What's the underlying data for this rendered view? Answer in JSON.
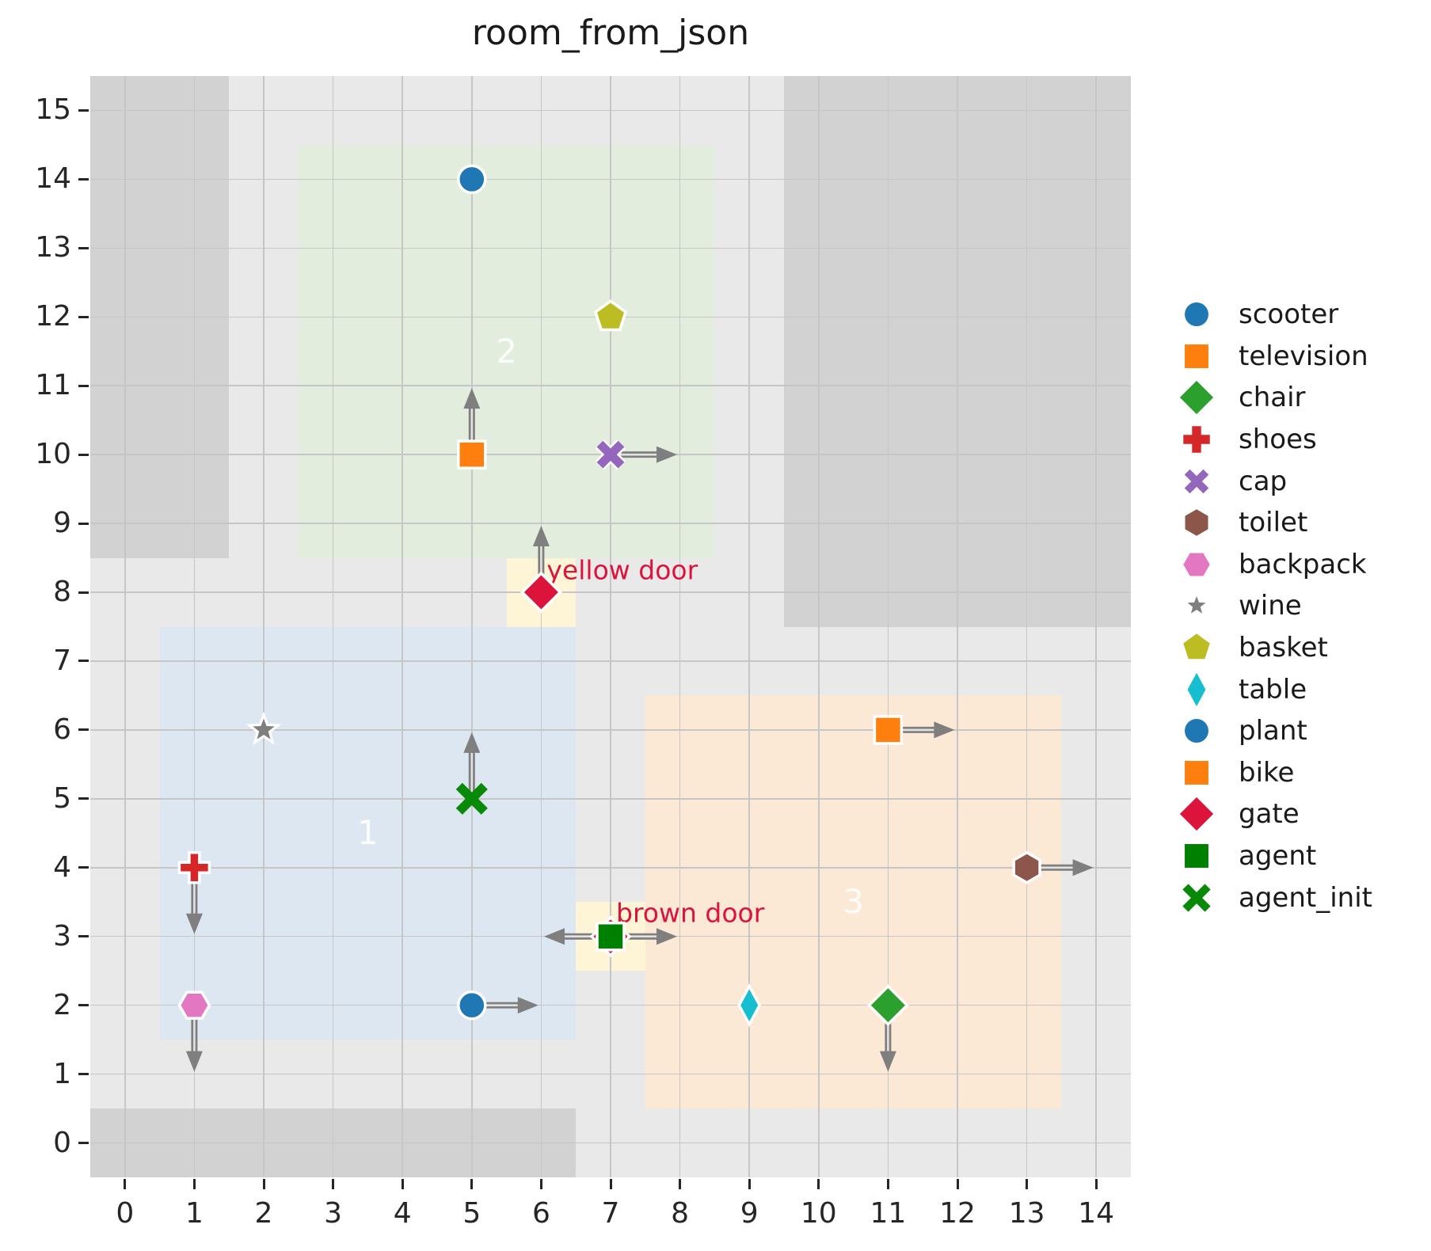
{
  "title": "room_from_json",
  "colors": {
    "axes_bg": "#e9e9e9",
    "grid": "#c6c6c6",
    "wall": "#d2d2d2",
    "door_fill": "#fdf5d6",
    "arrow": "#7f7f7f",
    "crimson": "#dc143c",
    "tick_text": "#262626",
    "room_label_text": "#ffffff"
  },
  "chart_data": {
    "type": "scatter",
    "title": "room_from_json",
    "xlabel": "",
    "ylabel": "",
    "xlim": [
      -0.5,
      14.5
    ],
    "ylim": [
      -0.5,
      15.5
    ],
    "x_ticks": [
      0,
      1,
      2,
      3,
      4,
      5,
      6,
      7,
      8,
      9,
      10,
      11,
      12,
      13,
      14
    ],
    "y_ticks": [
      0,
      1,
      2,
      3,
      4,
      5,
      6,
      7,
      8,
      9,
      10,
      11,
      12,
      13,
      14,
      15
    ],
    "grid": true,
    "legend_position": "right",
    "walls": [
      {
        "name": "wall-top-left",
        "x0": -0.5,
        "y0": 8.5,
        "x1": 1.5,
        "y1": 15.5
      },
      {
        "name": "wall-top-right",
        "x0": 9.5,
        "y0": 7.5,
        "x1": 14.5,
        "y1": 15.5
      },
      {
        "name": "wall-bottom",
        "x0": -0.5,
        "y0": -0.5,
        "x1": 6.5,
        "y1": 0.5
      }
    ],
    "rooms": [
      {
        "id": "1",
        "x0": 0.5,
        "y0": 1.5,
        "x1": 6.5,
        "y1": 7.5,
        "fill": "#dce7f1",
        "label": "1",
        "label_x": 3.5,
        "label_y": 4.5
      },
      {
        "id": "2",
        "x0": 2.5,
        "y0": 8.5,
        "x1": 8.5,
        "y1": 14.5,
        "fill": "#e2edde",
        "label": "2",
        "label_x": 5.5,
        "label_y": 11.5
      },
      {
        "id": "3",
        "x0": 7.5,
        "y0": 0.5,
        "x1": 13.5,
        "y1": 6.5,
        "fill": "#fbe8d5",
        "label": "3",
        "label_x": 10.5,
        "label_y": 3.5
      }
    ],
    "door_regions": [
      {
        "name": "yellow-door-region",
        "x0": 5.5,
        "y0": 7.5,
        "x1": 6.5,
        "y1": 8.5
      },
      {
        "name": "brown-door-region",
        "x0": 6.5,
        "y0": 2.5,
        "x1": 7.5,
        "y1": 3.5
      }
    ],
    "door_labels": [
      {
        "text": "yellow door",
        "x": 6.08,
        "y": 8.32
      },
      {
        "text": "brown door",
        "x": 7.08,
        "y": 3.34
      }
    ],
    "objects": [
      {
        "name": "scooter",
        "marker": "circle",
        "color": "#1f77b4",
        "x": 5,
        "y": 14,
        "arrows": [],
        "edge": true
      },
      {
        "name": "television",
        "marker": "square",
        "color": "#ff7f0e",
        "x": 5,
        "y": 10,
        "arrows": [
          "up"
        ],
        "edge": true
      },
      {
        "name": "basket",
        "marker": "pentagon",
        "color": "#bcbd22",
        "x": 7,
        "y": 12,
        "arrows": [],
        "edge": true
      },
      {
        "name": "cap",
        "marker": "x",
        "color": "#9467bd",
        "x": 7,
        "y": 10,
        "arrows": [
          "right"
        ],
        "edge": true
      },
      {
        "name": "gate",
        "marker": "diamond",
        "color": "#dc143c",
        "x": 6,
        "y": 8,
        "arrows": [
          "up"
        ],
        "edge": true
      },
      {
        "name": "wine",
        "marker": "star",
        "color": "#7f7f7f",
        "x": 2,
        "y": 6,
        "arrows": [],
        "edge": true
      },
      {
        "name": "agent_init",
        "marker": "xbold",
        "color": "#088a08",
        "x": 5,
        "y": 5,
        "arrows": [
          "up"
        ],
        "edge": false
      },
      {
        "name": "shoes",
        "marker": "plus",
        "color": "#d62728",
        "x": 1,
        "y": 4,
        "arrows": [
          "down"
        ],
        "edge": true
      },
      {
        "name": "backpack",
        "marker": "hexagon-flat",
        "color": "#e377c2",
        "x": 1,
        "y": 2,
        "arrows": [
          "down"
        ],
        "edge": true
      },
      {
        "name": "plant",
        "marker": "circle",
        "color": "#1f77b4",
        "x": 5,
        "y": 2,
        "arrows": [
          "right"
        ],
        "edge": true
      },
      {
        "name": "brown-door-marker",
        "marker": "diamond",
        "color": "#dc143c",
        "x": 7,
        "y": 3,
        "arrows": [],
        "edge": true
      },
      {
        "name": "agent",
        "marker": "square",
        "color": "#008000",
        "x": 7,
        "y": 3,
        "arrows": [
          "left",
          "right"
        ],
        "edge": true
      },
      {
        "name": "table",
        "marker": "thin-diamond",
        "color": "#17becf",
        "x": 9,
        "y": 2,
        "arrows": [],
        "edge": true
      },
      {
        "name": "chair",
        "marker": "diamond",
        "color": "#2ca02c",
        "x": 11,
        "y": 2,
        "arrows": [
          "down"
        ],
        "edge": true
      },
      {
        "name": "bike",
        "marker": "square",
        "color": "#ff7f0e",
        "x": 11,
        "y": 6,
        "arrows": [
          "right"
        ],
        "edge": true
      },
      {
        "name": "toilet",
        "marker": "hexagon",
        "color": "#8c564b",
        "x": 13,
        "y": 4,
        "arrows": [
          "right"
        ],
        "edge": true
      }
    ]
  },
  "legend": {
    "items": [
      {
        "label": "scooter",
        "marker": "circle",
        "color": "#1f77b4"
      },
      {
        "label": "television",
        "marker": "square",
        "color": "#ff7f0e"
      },
      {
        "label": "chair",
        "marker": "diamond",
        "color": "#2ca02c"
      },
      {
        "label": "shoes",
        "marker": "plus",
        "color": "#d62728"
      },
      {
        "label": "cap",
        "marker": "x",
        "color": "#9467bd"
      },
      {
        "label": "toilet",
        "marker": "hexagon",
        "color": "#8c564b"
      },
      {
        "label": "backpack",
        "marker": "hexagon-flat",
        "color": "#e377c2"
      },
      {
        "label": "wine",
        "marker": "star-small",
        "color": "#7f7f7f"
      },
      {
        "label": "basket",
        "marker": "pentagon",
        "color": "#bcbd22"
      },
      {
        "label": "table",
        "marker": "thin-diamond",
        "color": "#17becf"
      },
      {
        "label": "plant",
        "marker": "circle",
        "color": "#1f77b4"
      },
      {
        "label": "bike",
        "marker": "square",
        "color": "#ff7f0e"
      },
      {
        "label": "gate",
        "marker": "diamond",
        "color": "#dc143c"
      },
      {
        "label": "agent",
        "marker": "square",
        "color": "#008000"
      },
      {
        "label": "agent_init",
        "marker": "xbold",
        "color": "#088a08"
      }
    ]
  }
}
